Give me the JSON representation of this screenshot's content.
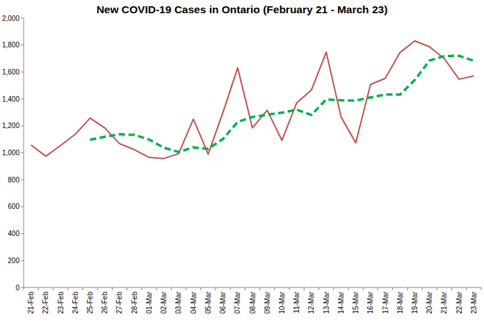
{
  "chart_data": {
    "type": "line",
    "title": "New COVID-19 Cases in Ontario (February 21 - March 23)",
    "categories": [
      "21-Feb",
      "22-Feb",
      "23-Feb",
      "24-Feb",
      "25-Feb",
      "26-Feb",
      "27-Feb",
      "28-Feb",
      "01-Mar",
      "02-Mar",
      "03-Mar",
      "04-Mar",
      "05-Mar",
      "06-Mar",
      "07-Mar",
      "08-Mar",
      "09-Mar",
      "10-Mar",
      "11-Mar",
      "12-Mar",
      "13-Mar",
      "14-Mar",
      "15-Mar",
      "16-Mar",
      "17-Mar",
      "18-Mar",
      "19-Mar",
      "20-Mar",
      "21-Mar",
      "22-Mar",
      "23-Mar"
    ],
    "series": [
      {
        "color": "#c0504d",
        "line_style": "solid",
        "values": [
          1058,
          975,
          1054,
          1138,
          1258,
          1184,
          1068,
          1023,
          966,
          958,
          994,
          1250,
          990,
          1299,
          1631,
          1185,
          1316,
          1092,
          1371,
          1467,
          1747,
          1268,
          1074,
          1508,
          1553,
          1745,
          1831,
          1787,
          1699,
          1546,
          1571
        ]
      },
      {
        "color": "#00b050",
        "line_style": "dashed",
        "values": [
          null,
          null,
          null,
          null,
          1097,
          1119,
          1138,
          1133,
          1098,
          1038,
          1006,
          1040,
          1030,
          1102,
          1229,
          1266,
          1283,
          1298,
          1320,
          1281,
          1397,
          1390,
          1388,
          1411,
          1433,
          1432,
          1541,
          1685,
          1718,
          1720,
          1683
        ]
      }
    ],
    "ylim": [
      0,
      2000
    ],
    "yticks": [
      0,
      200,
      400,
      600,
      800,
      {
        "value": 1000,
        "label": "1,000"
      },
      {
        "value": 1200,
        "label": "1,200"
      },
      {
        "value": 1400,
        "label": "1,400"
      },
      {
        "value": 1600,
        "label": "1,600"
      },
      {
        "value": 1800,
        "label": "1,800"
      },
      {
        "value": 2000,
        "label": "2,000"
      }
    ],
    "grid": false
  }
}
